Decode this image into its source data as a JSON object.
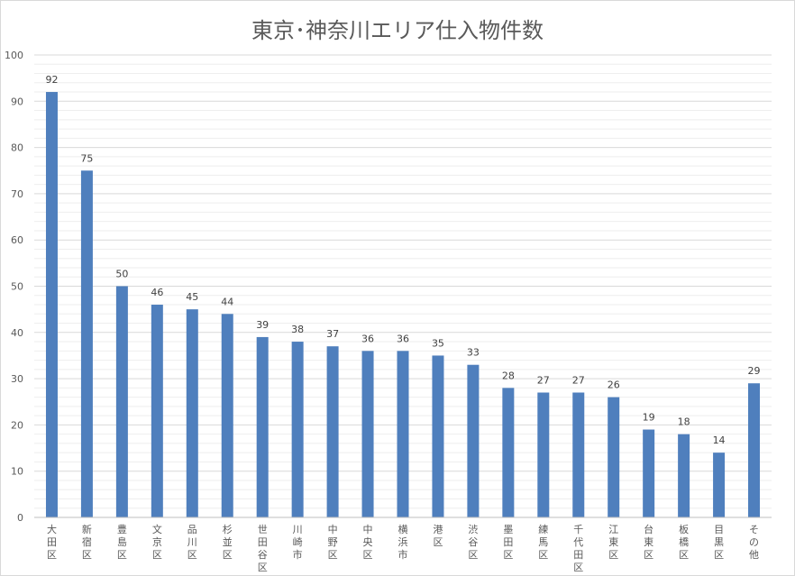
{
  "chart_data": {
    "type": "bar",
    "title": "東京･神奈川エリア仕入物件数",
    "xlabel": "",
    "ylabel": "",
    "ylim": [
      0,
      100
    ],
    "yticks": [
      0,
      10,
      20,
      30,
      40,
      50,
      60,
      70,
      80,
      90,
      100
    ],
    "grid": true,
    "legend": "none",
    "bar_color": "#4f7fbd",
    "categories": [
      "大田区",
      "新宿区",
      "豊島区",
      "文京区",
      "品川区",
      "杉並区",
      "世田谷区",
      "川崎市",
      "中野区",
      "中央区",
      "横浜市",
      "港区",
      "渋谷区",
      "墨田区",
      "練馬区",
      "千代田区",
      "江東区",
      "台東区",
      "板橋区",
      "目黒区",
      "その他"
    ],
    "values": [
      92,
      75,
      50,
      46,
      45,
      44,
      39,
      38,
      37,
      36,
      36,
      35,
      33,
      28,
      27,
      27,
      26,
      19,
      18,
      14,
      29
    ]
  }
}
